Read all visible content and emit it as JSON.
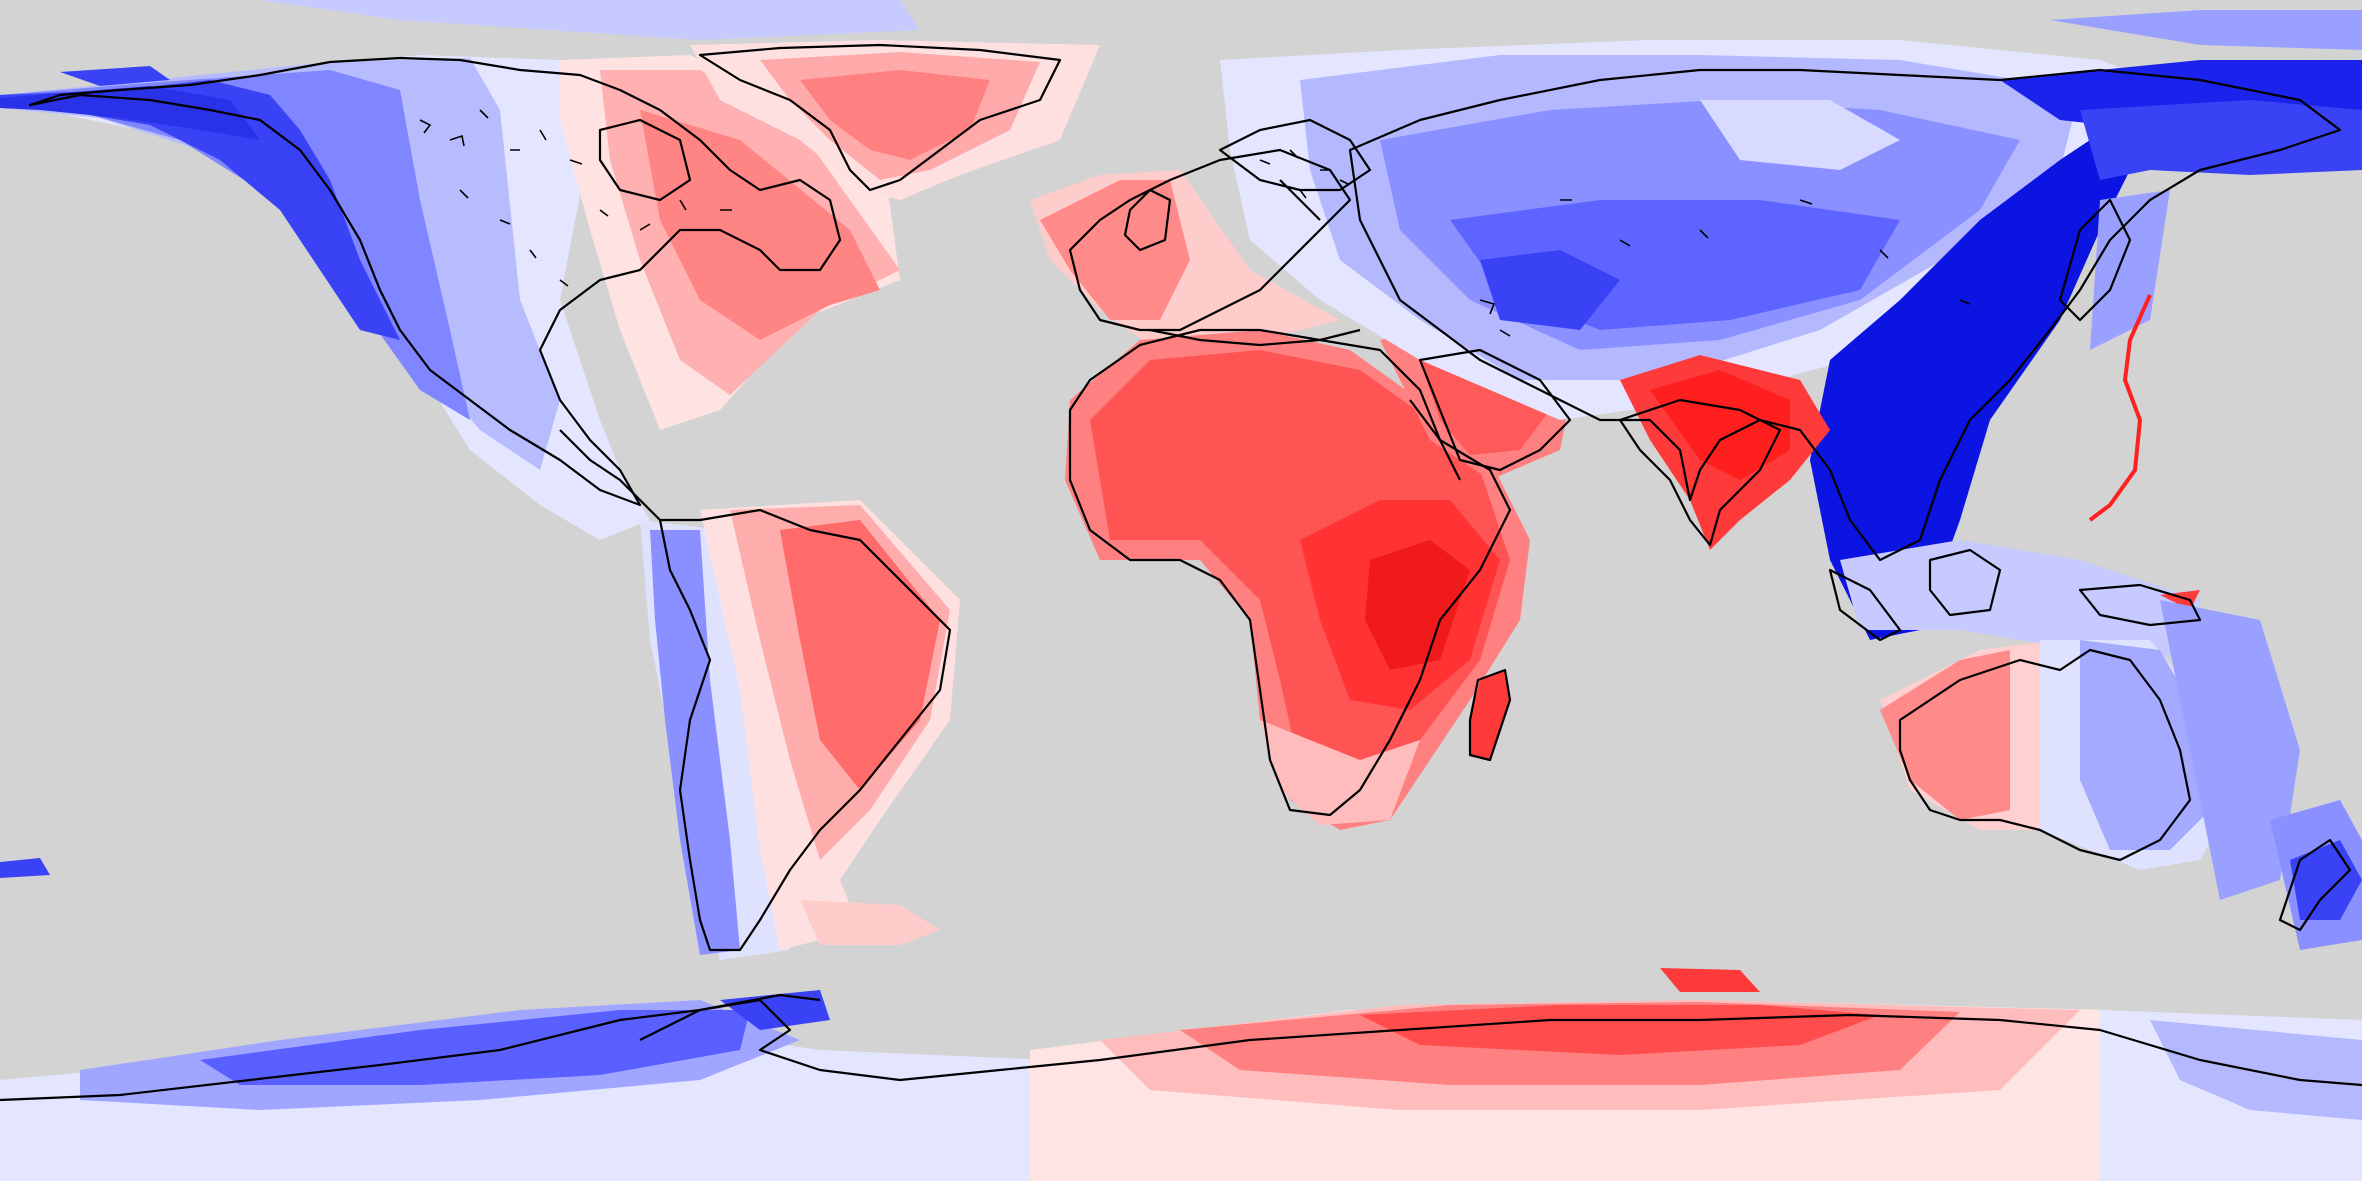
{
  "map": {
    "projection": "equirectangular",
    "background_color": "#d3d3d3",
    "coastline_color": "#000000",
    "color_scale": {
      "type": "diverging",
      "negative_color": "#0000ff",
      "neutral_color": "#ffffff",
      "positive_color": "#ff0000"
    },
    "regions": [
      {
        "name": "north-america-west",
        "sign": "negative"
      },
      {
        "name": "north-america-east",
        "sign": "positive"
      },
      {
        "name": "greenland",
        "sign": "positive"
      },
      {
        "name": "south-america-west",
        "sign": "negative"
      },
      {
        "name": "south-america-east",
        "sign": "positive"
      },
      {
        "name": "western-europe",
        "sign": "positive"
      },
      {
        "name": "africa",
        "sign": "positive"
      },
      {
        "name": "arabia",
        "sign": "positive"
      },
      {
        "name": "india",
        "sign": "positive"
      },
      {
        "name": "russia-central-asia",
        "sign": "negative"
      },
      {
        "name": "east-asia",
        "sign": "negative"
      },
      {
        "name": "australia-west",
        "sign": "positive"
      },
      {
        "name": "australia-east",
        "sign": "negative"
      },
      {
        "name": "new-zealand",
        "sign": "negative"
      },
      {
        "name": "antarctica-west",
        "sign": "negative"
      },
      {
        "name": "antarctica-east",
        "sign": "positive"
      }
    ]
  }
}
